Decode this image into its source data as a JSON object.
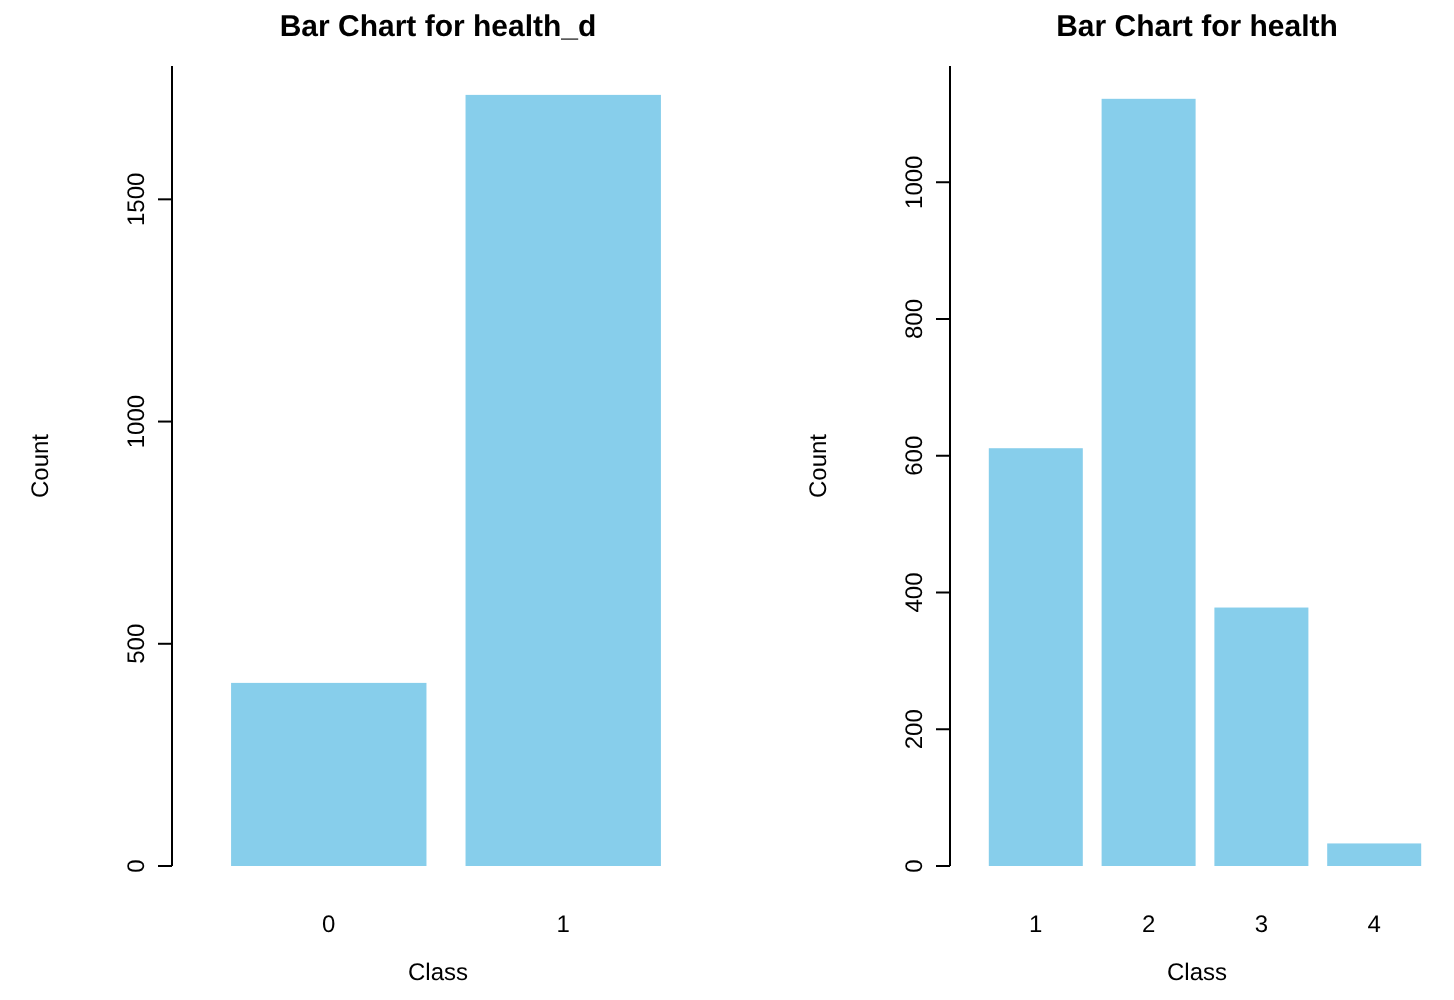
{
  "chart_data": [
    {
      "type": "bar",
      "title": "Bar Chart for health_d",
      "xlabel": "Class",
      "ylabel": "Count",
      "categories": [
        "0",
        "1"
      ],
      "values": [
        412,
        1735
      ],
      "color": "#87ceeb",
      "ylim": [
        0,
        1800
      ],
      "yticks": [
        0,
        500,
        1000,
        1500
      ]
    },
    {
      "type": "bar",
      "title": "Bar Chart for health",
      "xlabel": "Class",
      "ylabel": "Count",
      "categories": [
        "1",
        "2",
        "3",
        "4"
      ],
      "values": [
        611,
        1122,
        378,
        33
      ],
      "color": "#87ceeb",
      "ylim": [
        0,
        1170
      ],
      "yticks": [
        0,
        200,
        400,
        600,
        800,
        1000
      ]
    }
  ]
}
